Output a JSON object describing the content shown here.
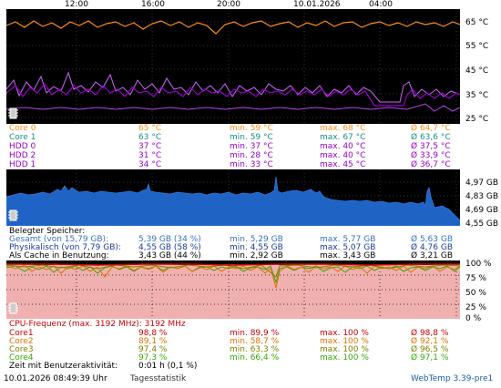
{
  "time_axis": [
    "12:00",
    "16:00",
    "20:00",
    "10.01.2026",
    "04:00"
  ],
  "temp_axis": [
    "65 °C",
    "55 °C",
    "45 °C",
    "35 °C",
    "25 °C"
  ],
  "temp_rows": [
    {
      "name": "Core 0",
      "cur": "65 °C",
      "min": "min. 59 °C",
      "max": "max. 68 °C",
      "avg": "Ø 64,7 °C",
      "color": "#ff8c1a"
    },
    {
      "name": "Core 1",
      "cur": "63 °C",
      "min": "min. 59 °C",
      "max": "max. 67 °C",
      "avg": "Ø 63,6 °C",
      "color": "#1a8c8c"
    },
    {
      "name": "HDD 0",
      "cur": "37 °C",
      "min": "min. 37 °C",
      "max": "max. 40 °C",
      "avg": "Ø 37,5 °C",
      "color": "#9900cc"
    },
    {
      "name": "HDD 2",
      "cur": "31 °C",
      "min": "min. 28 °C",
      "max": "max. 40 °C",
      "avg": "Ø 33,9 °C",
      "color": "#9900cc"
    },
    {
      "name": "HDD 1",
      "cur": "34 °C",
      "min": "min. 33 °C",
      "max": "max. 45 °C",
      "avg": "Ø 36,7 °C",
      "color": "#9900cc"
    }
  ],
  "mem_axis": [
    "4,97 GB",
    "4,83 GB",
    "4,69 GB",
    "4,55 GB"
  ],
  "mem_title": "Belegter Speicher:",
  "mem_rows": [
    {
      "name": "Gesamt (von 15,79 GB):",
      "cur": "5,39 GB (34 %)",
      "min": "min. 5,29 GB",
      "max": "max. 5,77 GB",
      "avg": "Ø 5,63 GB",
      "color": "#3b6fc4"
    },
    {
      "name": "Physikalisch (von 7,79 GB):",
      "cur": "4,55 GB (58 %)",
      "min": "min. 4,55 GB",
      "max": "max. 5,07 GB",
      "avg": "Ø 4,76 GB",
      "color": "#1a3a9e"
    },
    {
      "name": "Als Cache in Benutzung:",
      "cur": "3,43 GB (44 %)",
      "min": "min. 2,92 GB",
      "max": "max. 3,43 GB",
      "avg": "Ø 3,21 GB",
      "color": "#000000"
    }
  ],
  "cpu_axis": [
    "100 %",
    "75 %",
    "50 %",
    "25 %",
    "0 %"
  ],
  "cpu_title": "CPU-Frequenz (max. 3192 MHz): 3192 MHz",
  "cpu_rows": [
    {
      "name": "Core1",
      "cur": "98,8 %",
      "min": "min. 89,9 %",
      "max": "max. 100 %",
      "avg": "Ø 98,8 %",
      "color": "#cc0000"
    },
    {
      "name": "Core2",
      "cur": "89,1 %",
      "min": "min. 58,7 %",
      "max": "max. 100 %",
      "avg": "Ø 92,1 %",
      "color": "#e07000"
    },
    {
      "name": "Core3",
      "cur": "97,4 %",
      "min": "min. 63,3 %",
      "max": "max. 100 %",
      "avg": "Ø 96,5 %",
      "color": "#808000"
    },
    {
      "name": "Core4",
      "cur": "97,3 %",
      "min": "min. 66,4 %",
      "max": "max. 100 %",
      "avg": "Ø 97,1 %",
      "color": "#33aa00"
    }
  ],
  "activity": {
    "label": "Zeit mit Benutzeraktivität:",
    "value": "0:01 h (0,1 %)"
  },
  "footer": {
    "timestamp": "10.01.2026 08:49:39 Uhr",
    "stats": "Tagesstatistik",
    "brand": "WebTemp 3.39-pre1"
  }
}
